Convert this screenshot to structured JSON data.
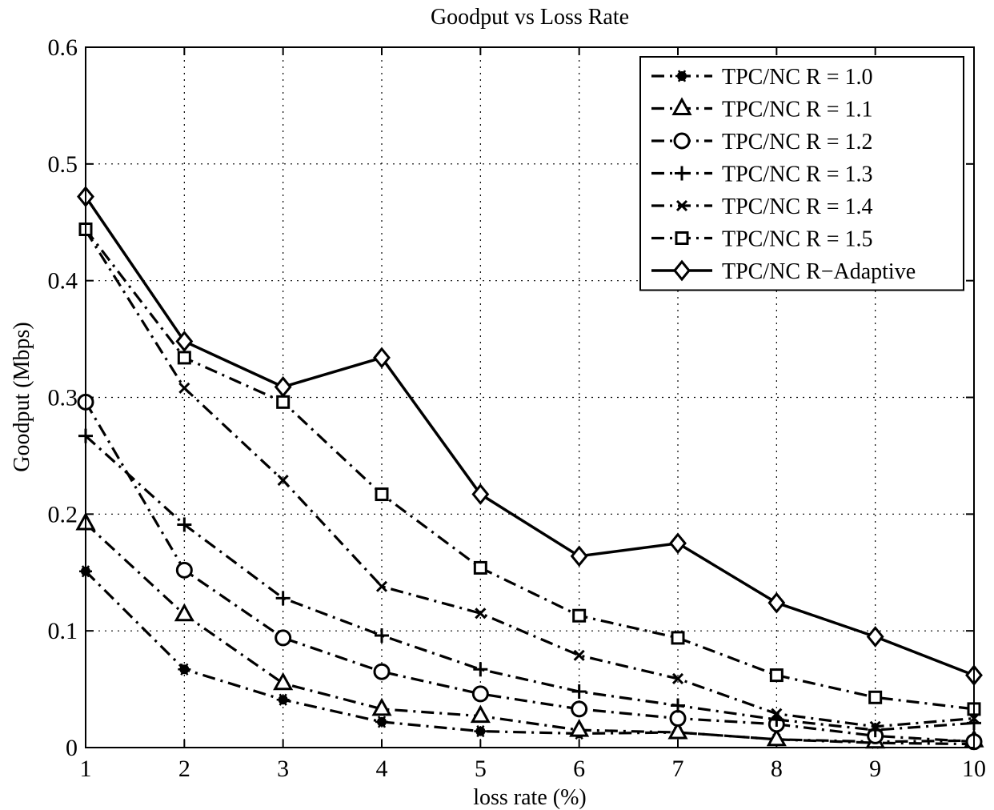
{
  "chart_data": {
    "type": "line",
    "title": "Goodput vs Loss Rate",
    "xlabel": "loss rate (%)",
    "ylabel": "Goodput (Mbps)",
    "xlim": [
      1,
      10
    ],
    "ylim": [
      0,
      0.6
    ],
    "x": [
      1,
      2,
      3,
      4,
      5,
      6,
      7,
      8,
      9,
      10
    ],
    "xticks": [
      "1",
      "2",
      "3",
      "4",
      "5",
      "6",
      "7",
      "8",
      "9",
      "10"
    ],
    "yticks": [
      "0",
      "0.1",
      "0.2",
      "0.3",
      "0.4",
      "0.5",
      "0.6"
    ],
    "grid": true,
    "legend_position": "top-right",
    "series": [
      {
        "name": "TPC/NC R = 1.0",
        "marker": "asterisk",
        "linestyle": "dash-dot",
        "values": [
          0.151,
          0.067,
          0.041,
          0.022,
          0.014,
          0.012,
          0.013,
          0.007,
          0.004,
          0.003
        ]
      },
      {
        "name": "TPC/NC R = 1.1",
        "marker": "triangle",
        "linestyle": "dash-dot",
        "values": [
          0.192,
          0.114,
          0.055,
          0.033,
          0.027,
          0.015,
          0.013,
          0.007,
          0.005,
          0.006
        ]
      },
      {
        "name": "TPC/NC R = 1.2",
        "marker": "circle",
        "linestyle": "dash-dot",
        "values": [
          0.296,
          0.152,
          0.094,
          0.065,
          0.046,
          0.033,
          0.025,
          0.02,
          0.01,
          0.005
        ]
      },
      {
        "name": "TPC/NC R = 1.3",
        "marker": "plus",
        "linestyle": "dash-dot",
        "values": [
          0.267,
          0.191,
          0.128,
          0.096,
          0.067,
          0.048,
          0.036,
          0.024,
          0.015,
          0.021
        ]
      },
      {
        "name": "TPC/NC R = 1.4",
        "marker": "x",
        "linestyle": "dash-dot",
        "values": [
          0.443,
          0.308,
          0.229,
          0.138,
          0.115,
          0.079,
          0.059,
          0.029,
          0.018,
          0.025
        ]
      },
      {
        "name": "TPC/NC R = 1.5",
        "marker": "square",
        "linestyle": "dash-dot",
        "values": [
          0.444,
          0.334,
          0.296,
          0.217,
          0.154,
          0.113,
          0.094,
          0.062,
          0.043,
          0.033
        ]
      },
      {
        "name": "TPC/NC R−Adaptive",
        "marker": "diamond",
        "linestyle": "solid",
        "values": [
          0.472,
          0.348,
          0.309,
          0.334,
          0.217,
          0.164,
          0.175,
          0.124,
          0.095,
          0.062
        ]
      }
    ]
  },
  "colors": {
    "line": "#000000",
    "background": "#ffffff"
  }
}
